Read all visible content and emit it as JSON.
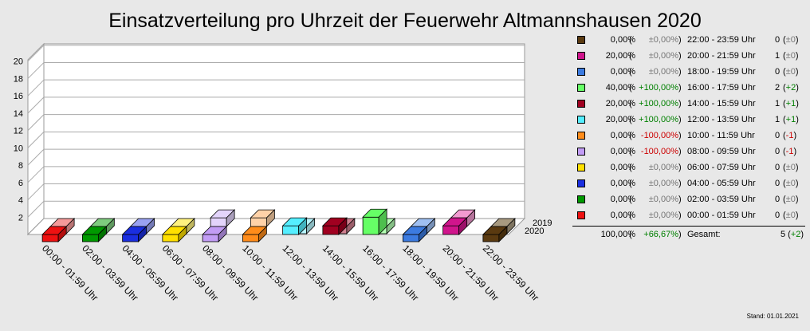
{
  "title": "Einsatzverteilung pro Uhrzeit der Feuerwehr Altmannshausen 2020",
  "stand": "Stand: 01.01.2021",
  "legend": {
    "rows": [
      {
        "color": "#5a3a10",
        "pct": "0,00%",
        "chg": "±0,00%",
        "range": "22:00 - 23:59 Uhr",
        "count": "0",
        "diff": "±0"
      },
      {
        "color": "#d0158c",
        "pct": "20,00%",
        "chg": "±0,00%",
        "range": "20:00 - 21:59 Uhr",
        "count": "1",
        "diff": "±0"
      },
      {
        "color": "#3c7be0",
        "pct": "0,00%",
        "chg": "±0,00%",
        "range": "18:00 - 19:59 Uhr",
        "count": "0",
        "diff": "±0"
      },
      {
        "color": "#66ff66",
        "pct": "40,00%",
        "chg": "+100,00%",
        "range": "16:00 - 17:59 Uhr",
        "count": "2",
        "diff": "+2"
      },
      {
        "color": "#a00020",
        "pct": "20,00%",
        "chg": "+100,00%",
        "range": "14:00 - 15:59 Uhr",
        "count": "1",
        "diff": "+1"
      },
      {
        "color": "#55eeff",
        "pct": "20,00%",
        "chg": "+100,00%",
        "range": "12:00 - 13:59 Uhr",
        "count": "1",
        "diff": "+1"
      },
      {
        "color": "#ff8c1a",
        "pct": "0,00%",
        "chg": "-100,00%",
        "range": "10:00 - 11:59 Uhr",
        "count": "0",
        "diff": "-1"
      },
      {
        "color": "#c29cf5",
        "pct": "0,00%",
        "chg": "-100,00%",
        "range": "08:00 - 09:59 Uhr",
        "count": "0",
        "diff": "-1"
      },
      {
        "color": "#ffe000",
        "pct": "0,00%",
        "chg": "±0,00%",
        "range": "06:00 - 07:59 Uhr",
        "count": "0",
        "diff": "±0"
      },
      {
        "color": "#1a2ee0",
        "pct": "0,00%",
        "chg": "±0,00%",
        "range": "04:00 - 05:59 Uhr",
        "count": "0",
        "diff": "±0"
      },
      {
        "color": "#009900",
        "pct": "0,00%",
        "chg": "±0,00%",
        "range": "02:00 - 03:59 Uhr",
        "count": "0",
        "diff": "±0"
      },
      {
        "color": "#ee1111",
        "pct": "0,00%",
        "chg": "±0,00%",
        "range": "00:00 - 01:59 Uhr",
        "count": "0",
        "diff": "±0"
      }
    ],
    "total": {
      "pct": "100,00%",
      "chg": "+66,67%",
      "label": "Gesamt:",
      "count": "5",
      "diff": "+2"
    }
  },
  "chart_data": {
    "type": "bar",
    "categories": [
      "00:00 - 01:59 Uhr",
      "02:00 - 03:59 Uhr",
      "04:00 - 05:59 Uhr",
      "06:00 - 07:59 Uhr",
      "08:00 - 09:59 Uhr",
      "10:00 - 11:59 Uhr",
      "12:00 - 13:59 Uhr",
      "14:00 - 15:59 Uhr",
      "16:00 - 17:59 Uhr",
      "18:00 - 19:59 Uhr",
      "20:00 - 21:59 Uhr",
      "22:00 - 23:59 Uhr"
    ],
    "series": [
      {
        "name": "2020",
        "values": [
          0,
          0,
          0,
          0,
          0,
          0,
          1,
          1,
          2,
          0,
          1,
          0
        ]
      },
      {
        "name": "2019",
        "values": [
          0,
          0,
          0,
          0,
          1,
          1,
          0,
          0,
          0,
          0,
          1,
          0
        ]
      }
    ],
    "colors_2020": [
      "#ee1111",
      "#009900",
      "#1a2ee0",
      "#ffe000",
      "#c29cf5",
      "#ff8c1a",
      "#55eeff",
      "#a00020",
      "#66ff66",
      "#3c7be0",
      "#d0158c",
      "#5a3a10"
    ],
    "colors_2019": [
      "#f59a9a",
      "#7fcc7f",
      "#9aa2f2",
      "#fff27f",
      "#e3d4fb",
      "#ffd2a8",
      "#b8f6ff",
      "#cf7f8f",
      "#b3ffb3",
      "#9fc0f2",
      "#f29ad0",
      "#a89a80"
    ],
    "yticks": [
      2,
      4,
      6,
      8,
      10,
      12,
      14,
      16,
      18,
      20
    ],
    "ylim": [
      0,
      22
    ],
    "grid": true
  }
}
